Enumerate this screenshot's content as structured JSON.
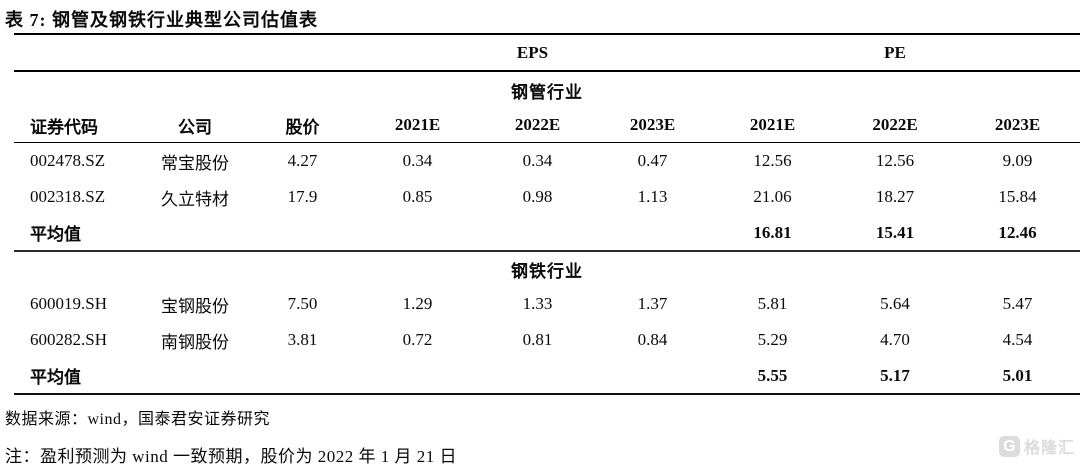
{
  "title": "表 7: 钢管及钢铁行业典型公司估值表",
  "table": {
    "group_headers": {
      "eps": "EPS",
      "pe": "PE"
    },
    "columns": [
      "证券代码",
      "公司",
      "股价",
      "2021E",
      "2022E",
      "2023E",
      "2021E",
      "2022E",
      "2023E"
    ],
    "sections": [
      {
        "name": "钢管行业",
        "rows": [
          {
            "code": "002478.SZ",
            "company": "常宝股份",
            "price": "4.27",
            "eps": [
              "0.34",
              "0.34",
              "0.47"
            ],
            "pe": [
              "12.56",
              "12.56",
              "9.09"
            ]
          },
          {
            "code": "002318.SZ",
            "company": "久立特材",
            "price": "17.9",
            "eps": [
              "0.85",
              "0.98",
              "1.13"
            ],
            "pe": [
              "21.06",
              "18.27",
              "15.84"
            ]
          }
        ],
        "average": {
          "label": "平均值",
          "pe": [
            "16.81",
            "15.41",
            "12.46"
          ]
        }
      },
      {
        "name": "钢铁行业",
        "rows": [
          {
            "code": "600019.SH",
            "company": "宝钢股份",
            "price": "7.50",
            "eps": [
              "1.29",
              "1.33",
              "1.37"
            ],
            "pe": [
              "5.81",
              "5.64",
              "5.47"
            ]
          },
          {
            "code": "600282.SH",
            "company": "南钢股份",
            "price": "3.81",
            "eps": [
              "0.72",
              "0.81",
              "0.84"
            ],
            "pe": [
              "5.29",
              "4.70",
              "4.54"
            ]
          }
        ],
        "average": {
          "label": "平均值",
          "pe": [
            "5.55",
            "5.17",
            "5.01"
          ]
        }
      }
    ]
  },
  "footer": {
    "source": "数据来源：wind，国泰君安证券研究",
    "note": "注：盈利预测为 wind 一致预期，股价为 2022 年 1 月 21 日"
  },
  "watermark": {
    "logo_letter": "G",
    "text": "格隆汇",
    "color": "#dcdcdc"
  }
}
